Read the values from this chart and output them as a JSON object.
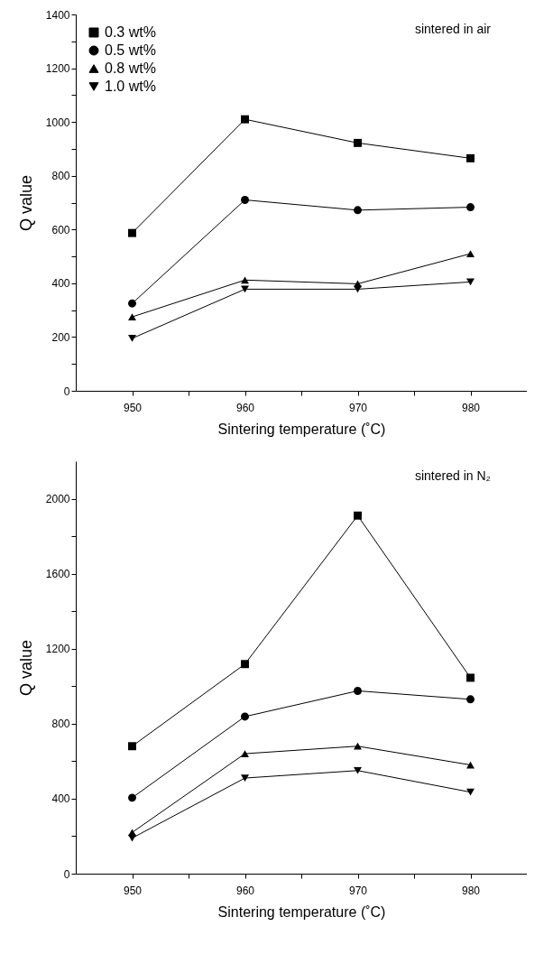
{
  "chart_data": [
    {
      "type": "line",
      "xlabel": "Sintering temperature (˚C)",
      "ylabel": "Q value",
      "annotations": [
        "sintered in air"
      ],
      "x": [
        950,
        960,
        970,
        980
      ],
      "xlim": [
        945,
        985
      ],
      "xticks": [
        950,
        {
          "value": 955,
          "label": null
        },
        960,
        {
          "value": 965,
          "label": null
        },
        970,
        {
          "value": 975,
          "label": null
        },
        980
      ],
      "ylim": [
        0,
        1400
      ],
      "yticks": [
        0,
        {
          "value": 100,
          "label": null
        },
        200,
        {
          "value": 300,
          "label": null
        },
        400,
        {
          "value": 500,
          "label": null
        },
        600,
        {
          "value": 700,
          "label": null
        },
        800,
        {
          "value": 900,
          "label": null
        },
        1000,
        {
          "value": 1100,
          "label": null
        },
        1200,
        {
          "value": 1300,
          "label": null
        },
        1400
      ],
      "grid": false,
      "legend": "top left",
      "line_style": "solid",
      "series": [
        {
          "name": "0.3 wt%",
          "color": "#000000",
          "marker": "square",
          "values": [
            587,
            1010,
            922,
            865
          ]
        },
        {
          "name": "0.5 wt%",
          "color": "#000000",
          "marker": "circle",
          "values": [
            325,
            710,
            672,
            683
          ]
        },
        {
          "name": "0.8 wt%",
          "color": "#000000",
          "marker": "triangle",
          "values": [
            275,
            412,
            398,
            510
          ]
        },
        {
          "name": "1.0 wt%",
          "color": "#000000",
          "marker": "triangle-down",
          "values": [
            195,
            378,
            378,
            405
          ]
        }
      ]
    },
    {
      "type": "line",
      "xlabel": "Sintering temperature (˚C)",
      "ylabel": "Q value",
      "annotations": [
        "sintered in N₂"
      ],
      "x": [
        950,
        960,
        970,
        980
      ],
      "xlim": [
        945,
        985
      ],
      "xticks": [
        950,
        {
          "value": 955,
          "label": null
        },
        960,
        {
          "value": 965,
          "label": null
        },
        970,
        {
          "value": 975,
          "label": null
        },
        980
      ],
      "ylim": [
        0,
        2200
      ],
      "yticks": [
        0,
        {
          "value": 200,
          "label": null
        },
        400,
        {
          "value": 600,
          "label": null
        },
        800,
        {
          "value": 1000,
          "label": null
        },
        1200,
        {
          "value": 1400,
          "label": null
        },
        1600,
        {
          "value": 1800,
          "label": null
        },
        2000
      ],
      "grid": false,
      "legend": "top left",
      "line_style": "solid",
      "series": [
        {
          "name": "0.3 wt%",
          "color": "#000000",
          "marker": "square",
          "values": [
            680,
            1118,
            1910,
            1045
          ]
        },
        {
          "name": "0.5 wt%",
          "color": "#000000",
          "marker": "circle",
          "values": [
            405,
            838,
            975,
            930
          ]
        },
        {
          "name": "0.8 wt%",
          "color": "#000000",
          "marker": "triangle",
          "values": [
            220,
            640,
            680,
            580
          ]
        },
        {
          "name": "1.0 wt%",
          "color": "#000000",
          "marker": "triangle-down",
          "values": [
            190,
            510,
            550,
            435
          ]
        }
      ]
    }
  ]
}
